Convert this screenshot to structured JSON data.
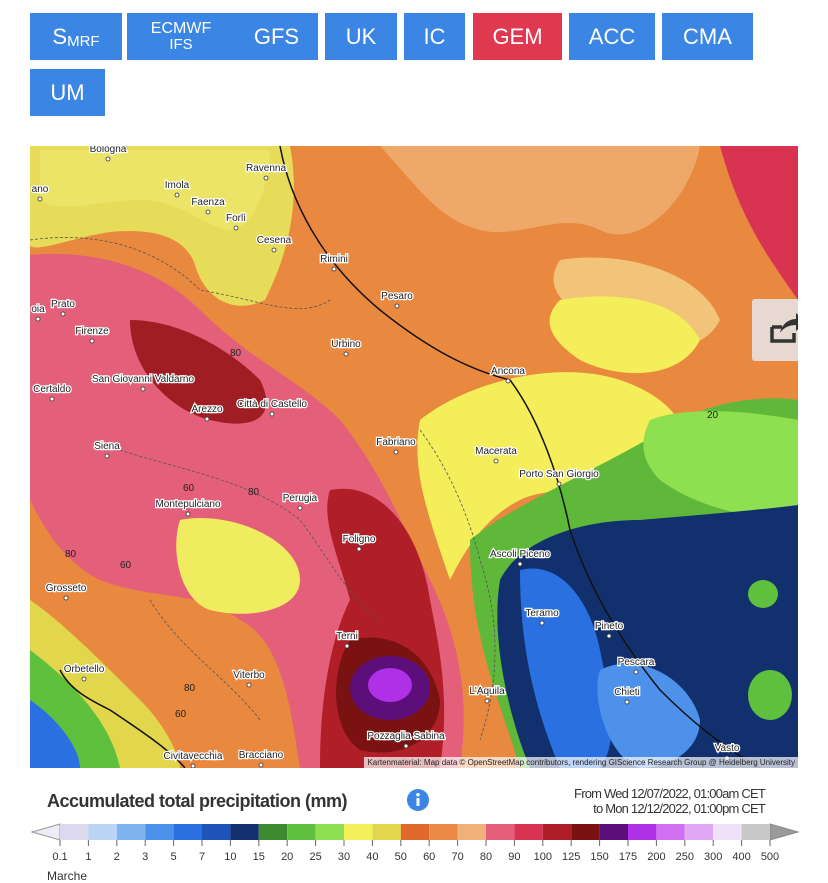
{
  "buttons": [
    {
      "label": "S",
      "sub": "MRF",
      "color": "#3b86e4"
    },
    {
      "label": "ECMWF",
      "sub": "IFS",
      "color": "#3b86e4"
    },
    {
      "label": "GFS",
      "color": "#3b86e4"
    },
    {
      "label": "UK",
      "color": "#3b86e4"
    },
    {
      "label": "IC",
      "color": "#3b86e4"
    },
    {
      "label": "GEM",
      "color": "#e0394f"
    },
    {
      "label": "ACC",
      "color": "#3b86e4"
    },
    {
      "label": "CMA",
      "color": "#3b86e4"
    },
    {
      "label": "UM",
      "color": "#3b86e4"
    }
  ],
  "map": {
    "cities": [
      "Bologna",
      "Ravenna",
      "Imola",
      "Faenza",
      "Forlì",
      "Cesena",
      "Rimini",
      "Pesaro",
      "ano",
      "oia",
      "Prato",
      "Firenze",
      "Urbino",
      "San Giovanni Valdarno",
      "Ancona",
      "Certaldo",
      "Arezzo",
      "Città di Castello",
      "Fabriano",
      "Siena",
      "Macerata",
      "Porto San Giorgio",
      "Perugia",
      "Montepulciano",
      "Foligno",
      "Ascoli Piceno",
      "Grosseto",
      "Teramo",
      "Pineto",
      "Terni",
      "Pescara",
      "Orbetello",
      "Viterbo",
      "L'Aquila",
      "Chieti",
      "Pozzaglia Sabina",
      "Vasto",
      "Civitavecchia",
      "Bracciano"
    ],
    "contour_labels": [
      80,
      80,
      60,
      80,
      60,
      80,
      60,
      20
    ],
    "attribution": "Kartenmaterial: Map data © OpenStreetMap contributors, rendering GIScience Research Group @ Heidelberg University"
  },
  "legend": {
    "title": "Accumulated total precipitation (mm)",
    "from": "From Wed 12/07/2022, 01:00am CET",
    "to": "to Mon 12/12/2022, 01:00pm CET",
    "scale": [
      0.1,
      1,
      2,
      3,
      5,
      7,
      10,
      15,
      20,
      25,
      30,
      40,
      50,
      60,
      70,
      80,
      90,
      100,
      125,
      150,
      175,
      200,
      250,
      300,
      400,
      500
    ],
    "colors": [
      "#dcd8ee",
      "#b9d4f4",
      "#80b4f0",
      "#4d91ea",
      "#2a70e0",
      "#1f55b8",
      "#13306e",
      "#3f8c30",
      "#5fc03e",
      "#8ee050",
      "#f3f05a",
      "#e2d64c",
      "#e0682a",
      "#ec8a45",
      "#f0b07a",
      "#e45f7a",
      "#d93352",
      "#b01e28",
      "#7a1212",
      "#5c0f7a",
      "#b030e8",
      "#d070f0",
      "#e0a8f4",
      "#f0e0f8",
      "#c8c8c8"
    ],
    "region": "Marche"
  }
}
